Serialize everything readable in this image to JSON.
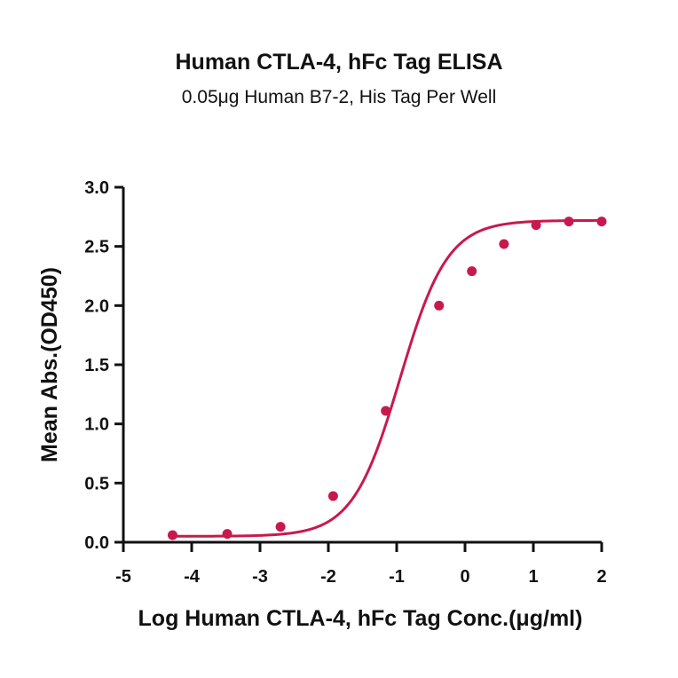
{
  "chart_data": {
    "type": "scatter",
    "title": "Human CTLA-4, hFc Tag ELISA",
    "subtitle": "0.05μg Human B7-2, His Tag Per Well",
    "xlabel": "Log Human CTLA-4, hFc Tag Conc.(μg/ml)",
    "ylabel": "Mean Abs.(OD450)",
    "xlim": [
      -5,
      2
    ],
    "ylim": [
      0,
      3
    ],
    "x_ticks": [
      "-5",
      "-4",
      "-3",
      "-2",
      "-1",
      "0",
      "1",
      "2"
    ],
    "y_ticks": [
      "0.0",
      "0.5",
      "1.0",
      "1.5",
      "2.0",
      "2.5",
      "3.0"
    ],
    "grid": false,
    "legend": "none",
    "series": [
      {
        "color": "#c8194f",
        "x": [
          -4.28,
          -3.48,
          -2.7,
          -1.93,
          -1.16,
          -0.38,
          0.1,
          0.57,
          1.04,
          1.52,
          2.0
        ],
        "y": [
          0.06,
          0.07,
          0.13,
          0.39,
          1.11,
          2.0,
          2.29,
          2.52,
          2.68,
          2.71,
          2.71
        ]
      }
    ],
    "fit": {
      "model": "4PL",
      "bottom": 0.05,
      "top": 2.72,
      "log_ec50": -0.95,
      "hill": 1.25
    }
  }
}
